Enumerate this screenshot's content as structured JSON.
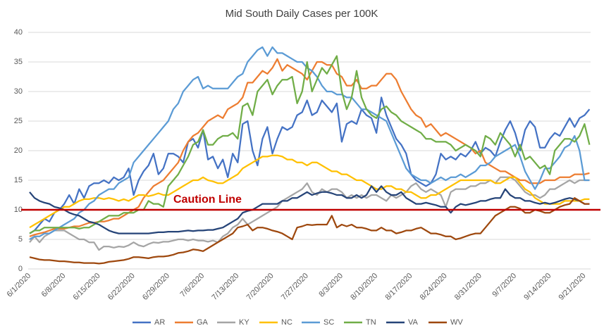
{
  "chart_data": {
    "type": "line",
    "title": "Mid South Daily Cases per 100K",
    "categories": [
      "6/1/2020",
      null,
      null,
      null,
      null,
      null,
      null,
      "6/8/2020",
      null,
      null,
      null,
      null,
      null,
      null,
      "6/15/2020",
      null,
      null,
      null,
      null,
      null,
      null,
      "6/22/2020",
      null,
      null,
      null,
      null,
      null,
      null,
      "6/29/2020",
      null,
      null,
      null,
      null,
      null,
      null,
      "7/6/2020",
      null,
      null,
      null,
      null,
      null,
      null,
      "7/13/2020",
      null,
      null,
      null,
      null,
      null,
      null,
      "7/20/2020",
      null,
      null,
      null,
      null,
      null,
      null,
      "7/27/2020",
      null,
      null,
      null,
      null,
      null,
      null,
      "8/3/2020",
      null,
      null,
      null,
      null,
      null,
      null,
      "8/10/2020",
      null,
      null,
      null,
      null,
      null,
      null,
      "8/17/2020",
      null,
      null,
      null,
      null,
      null,
      null,
      "8/24/2020",
      null,
      null,
      null,
      null,
      null,
      null,
      "8/31/2020",
      null,
      null,
      null,
      null,
      null,
      null,
      "9/7/2020",
      null,
      null,
      null,
      null,
      null,
      null,
      "9/14/2020",
      null,
      null,
      null,
      null,
      null,
      null,
      "9/21/2020",
      null
    ],
    "ylim": [
      0,
      40
    ],
    "yticks": [
      0,
      5,
      10,
      15,
      20,
      25,
      30,
      35,
      40
    ],
    "grid": true,
    "legend": "bottom",
    "reference_line": {
      "value": 10,
      "label": "Caution Line",
      "color": "#c00000"
    },
    "series": [
      {
        "name": "AR",
        "color": "#4472c4",
        "values": [
          6,
          6.5,
          7.5,
          8.5,
          8,
          9.5,
          10,
          11,
          12.5,
          11,
          13.5,
          12,
          14,
          14.5,
          14.5,
          15,
          14.5,
          15.5,
          15,
          15.5,
          17,
          12.5,
          15,
          16.5,
          17.5,
          19.5,
          16,
          17,
          19.5,
          19.5,
          19,
          18,
          21.5,
          22,
          20.5,
          23.5,
          18.5,
          19,
          17,
          18.5,
          15.5,
          19.5,
          18,
          24.5,
          25,
          20,
          17.5,
          22,
          24,
          19.5,
          22,
          24,
          23.5,
          24,
          26,
          26.5,
          28.5,
          26,
          26.5,
          28.5,
          27.5,
          26.5,
          28,
          21.5,
          24.5,
          25,
          24.5,
          27,
          26,
          25.5,
          23,
          29,
          26,
          24,
          22,
          21,
          19.5,
          16,
          15,
          14.5,
          14,
          14.5,
          16,
          19.5,
          18.5,
          19,
          18.5,
          19.5,
          19,
          20,
          21.5,
          19.5,
          20.5,
          20,
          19,
          21.5,
          23.5,
          25,
          23,
          20,
          23.5,
          25,
          24,
          20.5,
          20.5,
          22,
          23,
          22.5,
          24,
          25.5,
          24,
          25.5,
          26,
          27
        ]
      },
      {
        "name": "GA",
        "color": "#ed7d31",
        "values": [
          5.5,
          5.8,
          6,
          6.2,
          6.5,
          6.8,
          6.8,
          6.8,
          7,
          7.2,
          7.2,
          7.5,
          7.8,
          7.8,
          8,
          8,
          8.2,
          8.5,
          8.5,
          9,
          9.5,
          10,
          10.5,
          12,
          13,
          14,
          14.5,
          15,
          16,
          17,
          18,
          20,
          21.5,
          22.5,
          23,
          24,
          25,
          25.5,
          26,
          25.5,
          27,
          27.5,
          28,
          29,
          31.5,
          31.5,
          32.5,
          33.5,
          33,
          34,
          35.5,
          33.5,
          34.5,
          34,
          33.5,
          33,
          32,
          33.5,
          35,
          35,
          34.5,
          34.5,
          33,
          32.5,
          31,
          31,
          32,
          30.5,
          30.5,
          31,
          31,
          32,
          33,
          33,
          32,
          30,
          28.5,
          27,
          26,
          25.5,
          24,
          24.5,
          23.5,
          22.5,
          23,
          22.5,
          22,
          21.5,
          21,
          20.5,
          19.5,
          20,
          18,
          17.5,
          17,
          16.5,
          16.5,
          16,
          15.5,
          15,
          15,
          14.5,
          14.5,
          14.5,
          15,
          15,
          15,
          15.5,
          15.5,
          15.5,
          16,
          16,
          16,
          16.2
        ]
      },
      {
        "name": "KY",
        "color": "#a5a5a5",
        "values": [
          4.5,
          5.5,
          4.5,
          5.5,
          6,
          6.5,
          6.5,
          6.5,
          6,
          5.5,
          5,
          5,
          4.5,
          4.5,
          3.2,
          3.8,
          3.8,
          3.6,
          3.8,
          3.7,
          4,
          4.5,
          4,
          3.8,
          4.2,
          4.5,
          4.4,
          4.6,
          4.6,
          4.8,
          5,
          5,
          4.8,
          5,
          4.8,
          4.8,
          4.6,
          4.8,
          4.5,
          5.5,
          6,
          7,
          7.5,
          8.5,
          7.5,
          8,
          8.5,
          9,
          9.5,
          10,
          10.5,
          11.5,
          12,
          12.5,
          13,
          13.5,
          14.5,
          13,
          12.5,
          13.5,
          13,
          13.5,
          13.5,
          13,
          12,
          12.5,
          12,
          12.5,
          12,
          12.5,
          12.5,
          12,
          11.5,
          12.5,
          12,
          12.5,
          13,
          14,
          14.5,
          13.5,
          13,
          13.5,
          13,
          12.5,
          10.5,
          13,
          13.5,
          13.5,
          13.5,
          14,
          14,
          14.5,
          14.5,
          15,
          14.5,
          15.5,
          15.5,
          15.5,
          15,
          14,
          13,
          12.5,
          12.5,
          12,
          12.5,
          13.5,
          13.5,
          14,
          14.5,
          15,
          14.5,
          15,
          15,
          15
        ]
      },
      {
        "name": "NC",
        "color": "#ffc000",
        "values": [
          7,
          7.5,
          8,
          8.5,
          9,
          9.5,
          10,
          10.5,
          10.5,
          11,
          11.5,
          11.8,
          11.8,
          12,
          12,
          11.8,
          12,
          11.8,
          11.5,
          11.8,
          11.5,
          12,
          12.5,
          12.5,
          12.3,
          12.5,
          12.8,
          12.5,
          12.5,
          13,
          13.5,
          14,
          14.5,
          15,
          15,
          15.5,
          15,
          14.8,
          14.5,
          14.5,
          15,
          15.5,
          16,
          17,
          17.5,
          18,
          18.5,
          19,
          19,
          19.2,
          19.2,
          19,
          18.5,
          18.5,
          18,
          18,
          17.5,
          18,
          18,
          17.5,
          17,
          16.5,
          16.5,
          16,
          16,
          15.5,
          15,
          15,
          14.5,
          14,
          13.5,
          13.5,
          14,
          14,
          13.5,
          13.5,
          13,
          13,
          12.5,
          12,
          12,
          12.5,
          12.5,
          13,
          13.5,
          14,
          14.5,
          15,
          15,
          15,
          15,
          15,
          15,
          15,
          14.5,
          14.5,
          15,
          15.5,
          15.5,
          14.5,
          13.5,
          13,
          12,
          11.5,
          11,
          11,
          11,
          11,
          11.5,
          11.5,
          11.5,
          11.5,
          11.8,
          11.8
        ]
      },
      {
        "name": "SC",
        "color": "#5b9bd5",
        "values": [
          5,
          5.5,
          5.5,
          6,
          6,
          6.5,
          7,
          7.5,
          8,
          8.5,
          9.5,
          10,
          11,
          11.5,
          12.5,
          13,
          13.5,
          13.5,
          14.5,
          15,
          15.5,
          18,
          19,
          20,
          21,
          22,
          23,
          24,
          25,
          27,
          28,
          30,
          31,
          32,
          32.5,
          30.5,
          31,
          30.5,
          30.5,
          30.5,
          30.5,
          31.5,
          32.5,
          33,
          35,
          36,
          37,
          37.5,
          36,
          37.5,
          36.5,
          36.5,
          36,
          35.5,
          35,
          35,
          34,
          33.5,
          32.5,
          31,
          30,
          30,
          29.5,
          29.5,
          29,
          29,
          28,
          27,
          27,
          26.5,
          26,
          25.5,
          25,
          23,
          21,
          19,
          17,
          16,
          15.5,
          15,
          15,
          14.5,
          15,
          15.5,
          15,
          15.5,
          15.5,
          16,
          15.5,
          16,
          16.5,
          17.5,
          17.5,
          18,
          19,
          19.5,
          20,
          20.5,
          21,
          19,
          16.5,
          15,
          13.5,
          15,
          17,
          17,
          18,
          19,
          20.5,
          21,
          22.5,
          20,
          15,
          15
        ]
      },
      {
        "name": "TN",
        "color": "#70ad47",
        "values": [
          6,
          6.5,
          6.5,
          7,
          7,
          7,
          7,
          7,
          7,
          7,
          6.8,
          7,
          7,
          7.5,
          8,
          8.5,
          9,
          9,
          9,
          9.5,
          9.5,
          9.5,
          10,
          10,
          11.5,
          11,
          11,
          10.5,
          14,
          15,
          16,
          17.5,
          19,
          21,
          21.5,
          23.5,
          21,
          21,
          22,
          22.5,
          22.5,
          23,
          22,
          27.5,
          28,
          26,
          30,
          31,
          32,
          29.5,
          31,
          32,
          32,
          32.5,
          28,
          30,
          35,
          30,
          32,
          34,
          33,
          34.5,
          36,
          30,
          27,
          29,
          33.5,
          29,
          27,
          26,
          25.5,
          27,
          27.5,
          26.5,
          26,
          25,
          24.5,
          24,
          23.5,
          23,
          22,
          22,
          21.5,
          21.5,
          21.5,
          21,
          20,
          20.5,
          21,
          20.5,
          20,
          19,
          22.5,
          22,
          21,
          23,
          22,
          21,
          19,
          21,
          18.5,
          19,
          18,
          17,
          17.5,
          16,
          20,
          21,
          22,
          22,
          21.5,
          22.5,
          24.5,
          21
        ]
      },
      {
        "name": "VA",
        "color": "#264478",
        "values": [
          13,
          12,
          11.5,
          11.2,
          11,
          10.5,
          10.3,
          10,
          9.5,
          9.2,
          9,
          8.5,
          8,
          7.8,
          7.5,
          7,
          6.5,
          6.2,
          6,
          6,
          6,
          6,
          6,
          6,
          6,
          6.1,
          6.2,
          6.2,
          6.3,
          6.3,
          6.3,
          6.4,
          6.5,
          6.4,
          6.5,
          6.5,
          6.6,
          6.6,
          6.8,
          7,
          7.5,
          8,
          8.5,
          9.5,
          9.8,
          10,
          10.5,
          11,
          11,
          11,
          11,
          11.5,
          11.5,
          12,
          12,
          12.5,
          13,
          12.5,
          12.8,
          13,
          13,
          12.8,
          12.5,
          12.5,
          12,
          12,
          12.5,
          12,
          12.5,
          14,
          13,
          14,
          13,
          12.5,
          12.5,
          13,
          12,
          11.5,
          11,
          11,
          11.2,
          11,
          10.8,
          10.5,
          10.5,
          9.5,
          10.5,
          11,
          10.8,
          11,
          11.2,
          11.5,
          11.5,
          11.8,
          12,
          12,
          13.5,
          12.5,
          12,
          12,
          11.5,
          11.5,
          11.2,
          11,
          11.2,
          11,
          11.2,
          11.5,
          11.8,
          12,
          11.8,
          11.5,
          11,
          11
        ]
      },
      {
        "name": "WV",
        "color": "#9e480e",
        "values": [
          2,
          1.8,
          1.6,
          1.5,
          1.5,
          1.4,
          1.3,
          1.3,
          1.2,
          1.1,
          1.1,
          1,
          1,
          1,
          0.9,
          1,
          1.2,
          1.3,
          1.4,
          1.5,
          1.7,
          2,
          2,
          1.9,
          1.8,
          2,
          2.1,
          2.1,
          2.2,
          2.4,
          2.7,
          2.8,
          3,
          3.3,
          3.2,
          3,
          3.5,
          4,
          4.5,
          5,
          5.5,
          6,
          7,
          7.2,
          7.5,
          6.5,
          7,
          7,
          6.8,
          6.5,
          6.3,
          6,
          5.5,
          5,
          7,
          7.2,
          7.5,
          7.4,
          7.5,
          7.5,
          7.5,
          9,
          7,
          7.5,
          7.2,
          7.5,
          7,
          7,
          6.8,
          6.5,
          6.5,
          7,
          6.5,
          6.5,
          6,
          6.2,
          6.5,
          6.5,
          6.8,
          7,
          6.5,
          6,
          6,
          5.8,
          5.5,
          5.5,
          5,
          5.2,
          5.5,
          5.8,
          6,
          6,
          7,
          8,
          9,
          9.5,
          10,
          10.5,
          10.5,
          10.2,
          9.5,
          9.5,
          10,
          9.8,
          9.5,
          9.5,
          10,
          10.5,
          10.8,
          11,
          12,
          11.5,
          11,
          11
        ]
      }
    ]
  }
}
